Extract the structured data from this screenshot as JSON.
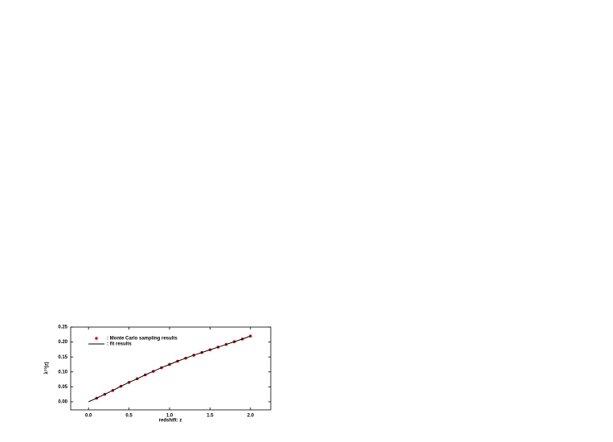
{
  "chart_data": {
    "type": "scatter",
    "xlabel": "redshift: z",
    "ylabel": "λ⁽¹⁾(z)",
    "xlim": [
      -0.22,
      2.25
    ],
    "ylim": [
      -0.027,
      0.25
    ],
    "xticks": [
      {
        "value": 0,
        "label": "0.0"
      },
      {
        "value": 0.5,
        "label": "0.5"
      },
      {
        "value": 1,
        "label": "1.0"
      },
      {
        "value": 1.5,
        "label": "1.5"
      },
      {
        "value": 2,
        "label": "2.0"
      }
    ],
    "yticks": [
      {
        "value": 0,
        "label": "0.00"
      },
      {
        "value": 0.05,
        "label": "0.05"
      },
      {
        "value": 0.1,
        "label": "0.10"
      },
      {
        "value": 0.15,
        "label": "0.15"
      },
      {
        "value": 0.2,
        "label": "0.20"
      },
      {
        "value": 0.25,
        "label": "0.25"
      }
    ],
    "series": [
      {
        "name": ": Monte Carlo sampling results",
        "color": "#e00000",
        "kind": "points",
        "x": [
          0.1,
          0.2,
          0.3,
          0.4,
          0.5,
          0.6,
          0.7,
          0.8,
          0.9,
          1.0,
          1.1,
          1.2,
          1.3,
          1.4,
          1.5,
          1.6,
          1.7,
          1.8,
          1.9,
          2.0
        ],
        "values": [
          0.012,
          0.025,
          0.038,
          0.052,
          0.065,
          0.077,
          0.09,
          0.102,
          0.114,
          0.125,
          0.136,
          0.146,
          0.156,
          0.165,
          0.174,
          0.183,
          0.192,
          0.201,
          0.21,
          0.22
        ]
      },
      {
        "name": ": fit results",
        "color": "#000000",
        "kind": "line",
        "x": [
          0,
          0.1,
          0.2,
          0.3,
          0.4,
          0.5,
          0.6,
          0.7,
          0.8,
          0.9,
          1.0,
          1.1,
          1.2,
          1.3,
          1.4,
          1.5,
          1.6,
          1.7,
          1.8,
          1.9,
          2.0
        ],
        "values": [
          0,
          0.012,
          0.025,
          0.038,
          0.052,
          0.065,
          0.077,
          0.09,
          0.102,
          0.114,
          0.125,
          0.136,
          0.146,
          0.156,
          0.165,
          0.174,
          0.183,
          0.192,
          0.201,
          0.21,
          0.22
        ]
      }
    ]
  }
}
